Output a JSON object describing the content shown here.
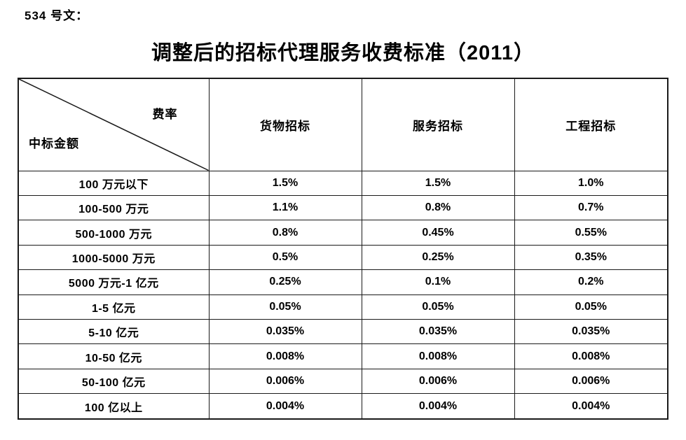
{
  "doc": {
    "doc_number": "534 号文：",
    "title": "调整后的招标代理服务收费标准（2011）"
  },
  "table": {
    "corner": {
      "top_right_label": "费率",
      "bottom_left_label": "中标金额"
    },
    "columns": [
      "货物招标",
      "服务招标",
      "工程招标"
    ],
    "rows": [
      {
        "label": "100 万元以下",
        "values": [
          "1.5%",
          "1.5%",
          "1.0%"
        ]
      },
      {
        "label": "100-500 万元",
        "values": [
          "1.1%",
          "0.8%",
          "0.7%"
        ]
      },
      {
        "label": "500-1000 万元",
        "values": [
          "0.8%",
          "0.45%",
          "0.55%"
        ]
      },
      {
        "label": "1000-5000 万元",
        "values": [
          "0.5%",
          "0.25%",
          "0.35%"
        ]
      },
      {
        "label": "5000 万元-1 亿元",
        "values": [
          "0.25%",
          "0.1%",
          "0.2%"
        ]
      },
      {
        "label": "1-5 亿元",
        "values": [
          "0.05%",
          "0.05%",
          "0.05%"
        ]
      },
      {
        "label": "5-10 亿元",
        "values": [
          "0.035%",
          "0.035%",
          "0.035%"
        ]
      },
      {
        "label": "10-50 亿元",
        "values": [
          "0.008%",
          "0.008%",
          "0.008%"
        ]
      },
      {
        "label": "50-100 亿元",
        "values": [
          "0.006%",
          "0.006%",
          "0.006%"
        ]
      },
      {
        "label": "100 亿以上",
        "values": [
          "0.004%",
          "0.004%",
          "0.004%"
        ]
      }
    ]
  }
}
